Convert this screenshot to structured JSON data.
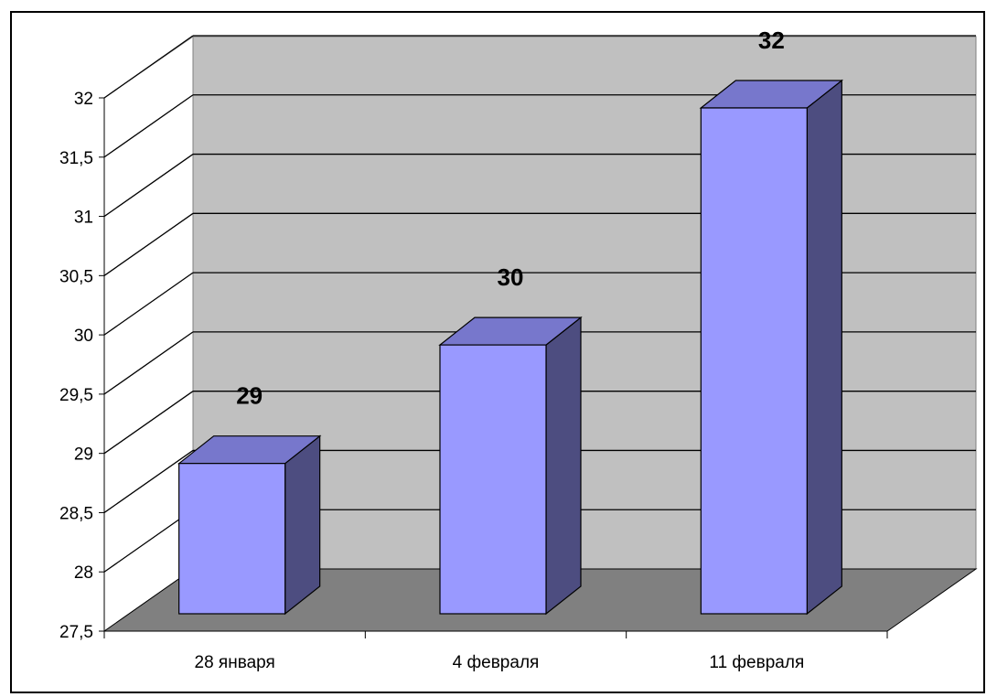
{
  "chart_data": {
    "type": "bar",
    "style": "3d-column",
    "categories": [
      "28 января",
      "4 февраля",
      "11 февраля"
    ],
    "values": [
      29,
      30,
      32
    ],
    "data_labels": [
      "29",
      "30",
      "32"
    ],
    "title": "",
    "xlabel": "",
    "ylabel": "",
    "ylim": [
      27.5,
      32
    ],
    "y_ticks": [
      "27,5",
      "28",
      "28,5",
      "29",
      "29,5",
      "30",
      "30,5",
      "31",
      "31,5",
      "32"
    ],
    "grid": true,
    "legend": "none",
    "colors": {
      "bar_front": "#9999ff",
      "bar_top": "#7777cc",
      "bar_side": "#4d4d80",
      "back_wall": "#c0c0c0",
      "floor": "#808080",
      "gridline": "#000000"
    }
  }
}
